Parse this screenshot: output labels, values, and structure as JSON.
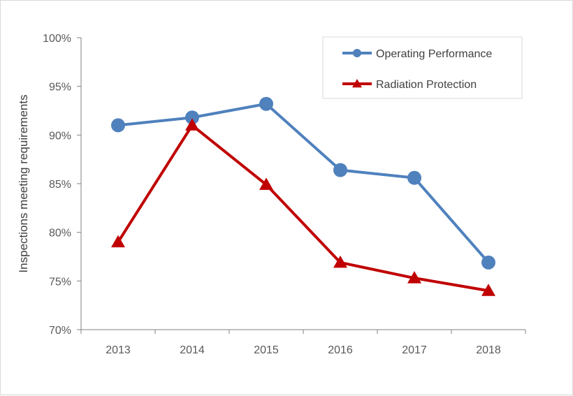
{
  "chart_data": {
    "type": "line",
    "title": "",
    "xlabel": "",
    "ylabel": "Inspections meeting requirements",
    "categories": [
      "2013",
      "2014",
      "2015",
      "2016",
      "2017",
      "2018"
    ],
    "ylim": [
      70,
      100
    ],
    "yticks": [
      70,
      75,
      80,
      85,
      90,
      95,
      100
    ],
    "ytick_labels": [
      "70%",
      "75%",
      "80%",
      "85%",
      "90%",
      "95%",
      "100%"
    ],
    "grid": false,
    "legend_position": "top-right",
    "series": [
      {
        "name": "Operating Performance",
        "values": [
          91.0,
          91.8,
          93.2,
          86.4,
          85.6,
          76.9
        ],
        "color": "#4f81bd",
        "marker": "circle"
      },
      {
        "name": "Radiation Protection",
        "values": [
          79.0,
          91.0,
          84.9,
          76.9,
          75.3,
          74.0
        ],
        "color": "#c00000",
        "marker": "triangle"
      }
    ]
  }
}
